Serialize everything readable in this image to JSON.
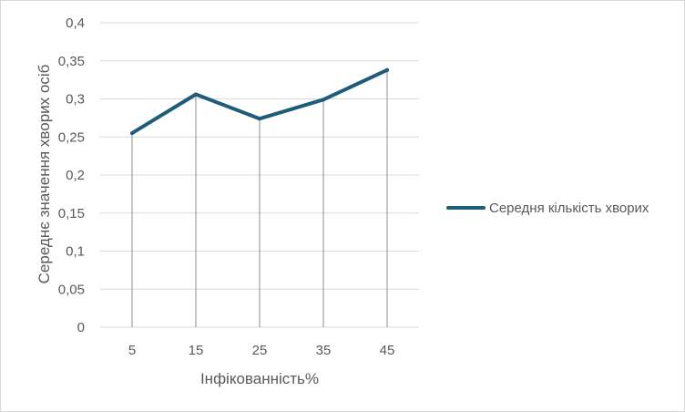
{
  "chart_data": {
    "type": "line",
    "title": "",
    "xlabel": "Інфікованність%",
    "ylabel": "Середнє значення хворих осіб",
    "categories": [
      "5",
      "15",
      "25",
      "35",
      "45"
    ],
    "series": [
      {
        "name": "Середня кількість хворих",
        "values": [
          0.255,
          0.306,
          0.274,
          0.299,
          0.338
        ],
        "color": "#1f5c7a"
      }
    ],
    "ylim": [
      0,
      0.4
    ],
    "yticks": [
      "0",
      "0,05",
      "0,1",
      "0,15",
      "0,2",
      "0,25",
      "0,3",
      "0,35",
      "0,4"
    ],
    "grid": true,
    "drop_lines": true,
    "legend_position": "right"
  }
}
